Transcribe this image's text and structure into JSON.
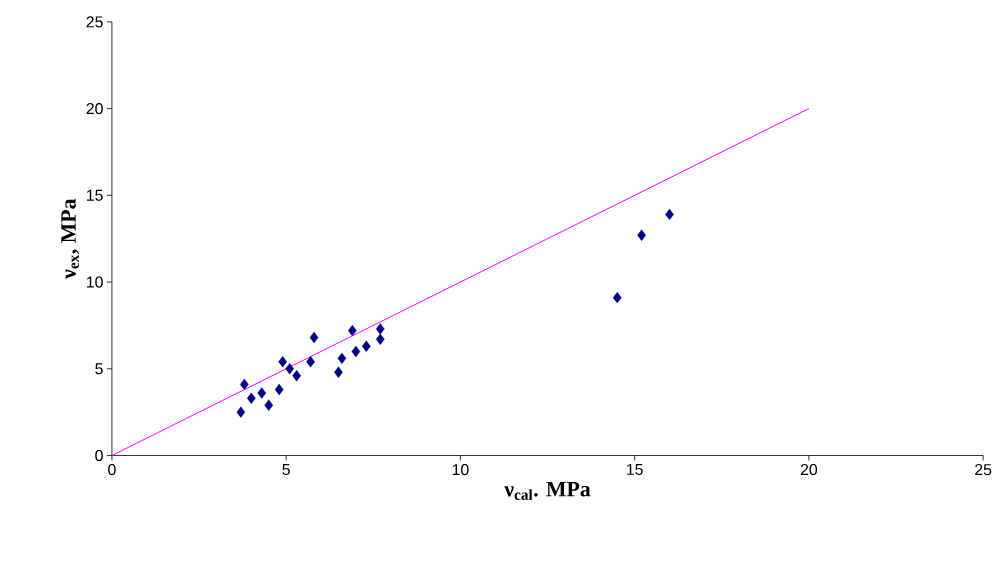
{
  "chart_data": {
    "type": "scatter",
    "xlabel": "ν$_{cal}$. MPa",
    "ylabel": "ν$_{ex}$, MPa",
    "series": [
      {
        "type": "scatter",
        "color": "#000080",
        "marker": "diamond",
        "x": [
          3.8,
          3.7,
          4.0,
          4.3,
          4.5,
          4.8,
          4.9,
          5.1,
          5.3,
          5.7,
          5.8,
          6.5,
          6.6,
          6.9,
          7.0,
          7.3,
          7.7,
          7.7,
          16.0,
          15.2,
          14.5
        ],
        "values": [
          4.1,
          2.5,
          3.3,
          3.6,
          2.9,
          3.8,
          5.4,
          5.0,
          4.6,
          5.4,
          6.8,
          4.8,
          5.6,
          7.2,
          6.0,
          6.3,
          7.3,
          6.7,
          13.9,
          12.7,
          9.1
        ]
      },
      {
        "type": "line",
        "color": "#ff00ff",
        "marker": "none",
        "x": [
          0,
          20
        ],
        "values": [
          0,
          20
        ]
      }
    ],
    "xlim": [
      0,
      25
    ],
    "ylim": [
      0,
      25
    ],
    "xticks": [
      0,
      5,
      10,
      15,
      20,
      25
    ],
    "yticks": [
      0,
      5,
      10,
      15,
      20,
      25
    ],
    "grid": false
  }
}
